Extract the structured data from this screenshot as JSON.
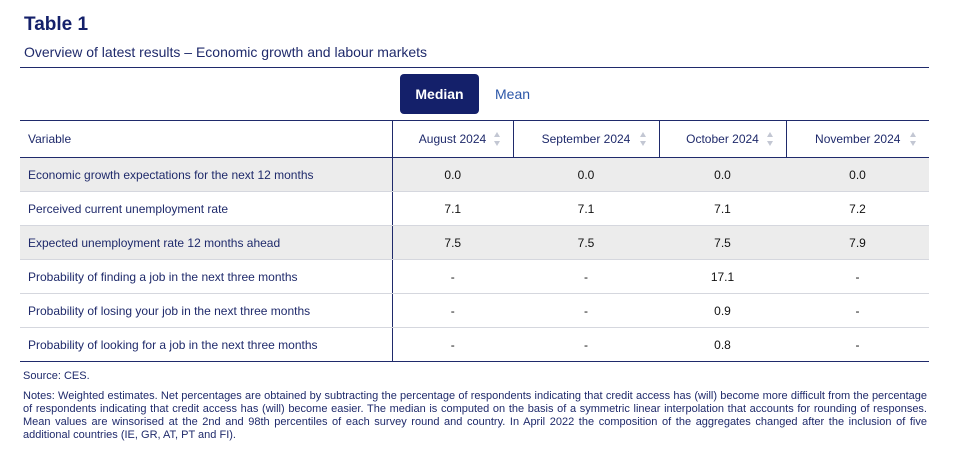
{
  "header": {
    "title": "Table 1",
    "subtitle": "Overview of latest results – Economic growth and labour markets"
  },
  "toggle": {
    "median_label": "Median",
    "mean_label": "Mean",
    "selected": "Median"
  },
  "table": {
    "variable_header": "Variable",
    "months": [
      "August 2024",
      "September 2024",
      "October 2024",
      "November 2024"
    ],
    "rows": [
      {
        "label": "Economic growth expectations for the next 12 months",
        "values": [
          "0.0",
          "0.0",
          "0.0",
          "0.0"
        ]
      },
      {
        "label": "Perceived current unemployment rate",
        "values": [
          "7.1",
          "7.1",
          "7.1",
          "7.2"
        ]
      },
      {
        "label": "Expected unemployment rate 12 months ahead",
        "values": [
          "7.5",
          "7.5",
          "7.5",
          "7.9"
        ]
      },
      {
        "label": "Probability of finding a job in the next three months",
        "values": [
          "-",
          "-",
          "17.1",
          "-"
        ]
      },
      {
        "label": "Probability of losing your job in the next three months",
        "values": [
          "-",
          "-",
          "0.9",
          "-"
        ]
      },
      {
        "label": "Probability of looking for a job in the next three months",
        "values": [
          "-",
          "-",
          "0.8",
          "-"
        ]
      }
    ]
  },
  "footer": {
    "source": "Source: CES.",
    "notes": "Notes: Weighted estimates. Net percentages are obtained by subtracting the percentage of respondents indicating that credit access has (will) become more difficult from the percentage of respondents indicating that credit access has (will) become easier. The median is computed on the basis of a symmetric linear interpolation that accounts for rounding of responses. Mean values are winsorised at the 2nd and 98th percentiles of each survey round and country. In April 2022 the composition of the aggregates changed after the inclusion of five additional countries (IE, GR, AT, PT and FI)."
  },
  "colors": {
    "navy": "#14206a",
    "text_blue": "#1f2a6b",
    "link_blue": "#2b56a8",
    "row_shade": "#ececec"
  }
}
